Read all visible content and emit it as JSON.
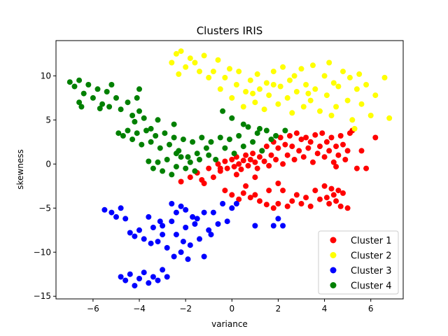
{
  "chart_data": {
    "type": "scatter",
    "title": "Clusters IRIS",
    "xlabel": "variance",
    "ylabel": "skewness",
    "xlim": [
      -7.6,
      7.4
    ],
    "ylim": [
      -15.3,
      14.0
    ],
    "x_ticks": [
      -6,
      -4,
      -2,
      0,
      2,
      4,
      6
    ],
    "y_ticks": [
      -15,
      -10,
      -5,
      0,
      5,
      10
    ],
    "x_tick_labels": [
      "−6",
      "−4",
      "−2",
      "0",
      "2",
      "4",
      "6"
    ],
    "y_tick_labels": [
      "−15",
      "−10",
      "−5",
      "0",
      "5",
      "10"
    ],
    "grid": false,
    "legend_position": "lower-right",
    "series": [
      {
        "name": "Cluster 1",
        "color": "#ff0000",
        "points": [
          [
            -2.2,
            -2.0
          ],
          [
            -1.8,
            -1.5
          ],
          [
            -1.5,
            -1.0
          ],
          [
            -1.2,
            -2.2
          ],
          [
            -1.0,
            -0.5
          ],
          [
            -0.8,
            -1.5
          ],
          [
            -0.6,
            0.0
          ],
          [
            -0.5,
            -0.8
          ],
          [
            -0.3,
            0.3
          ],
          [
            -0.2,
            -0.5
          ],
          [
            0.0,
            0.5
          ],
          [
            0.1,
            -0.3
          ],
          [
            0.2,
            0.8
          ],
          [
            0.3,
            0.0
          ],
          [
            0.4,
            -0.6
          ],
          [
            0.5,
            0.4
          ],
          [
            0.6,
            1.0
          ],
          [
            0.7,
            -0.2
          ],
          [
            0.8,
            0.5
          ],
          [
            0.9,
            1.2
          ],
          [
            1.0,
            0.2
          ],
          [
            1.1,
            -0.5
          ],
          [
            1.2,
            0.8
          ],
          [
            1.3,
            1.5
          ],
          [
            1.4,
            0.3
          ],
          [
            1.5,
            2.0
          ],
          [
            1.6,
            -0.2
          ],
          [
            1.7,
            1.0
          ],
          [
            1.8,
            2.5
          ],
          [
            1.9,
            0.5
          ],
          [
            2.0,
            1.8
          ],
          [
            2.1,
            3.0
          ],
          [
            2.2,
            0.0
          ],
          [
            2.3,
            2.2
          ],
          [
            2.4,
            1.0
          ],
          [
            2.5,
            3.2
          ],
          [
            2.6,
            2.0
          ],
          [
            2.7,
            0.5
          ],
          [
            2.8,
            3.5
          ],
          [
            2.9,
            1.5
          ],
          [
            3.0,
            2.8
          ],
          [
            3.1,
            0.8
          ],
          [
            3.2,
            3.0
          ],
          [
            3.3,
            1.8
          ],
          [
            3.4,
            2.5
          ],
          [
            3.5,
            0.2
          ],
          [
            3.6,
            3.3
          ],
          [
            3.7,
            1.2
          ],
          [
            3.8,
            2.0
          ],
          [
            3.9,
            3.5
          ],
          [
            4.0,
            0.8
          ],
          [
            4.1,
            2.5
          ],
          [
            4.2,
            1.5
          ],
          [
            4.3,
            3.0
          ],
          [
            4.4,
            0.2
          ],
          [
            4.5,
            2.0
          ],
          [
            4.6,
            1.0
          ],
          [
            4.7,
            3.2
          ],
          [
            4.8,
            2.2
          ],
          [
            4.9,
            0.5
          ],
          [
            5.0,
            1.5
          ],
          [
            5.2,
            3.8
          ],
          [
            5.4,
            -0.5
          ],
          [
            5.6,
            1.5
          ],
          [
            5.8,
            -0.5
          ],
          [
            6.2,
            3.0
          ],
          [
            5.1,
            3.5
          ],
          [
            4.5,
            -0.3
          ],
          [
            0.0,
            -3.5
          ],
          [
            0.3,
            -4.0
          ],
          [
            0.5,
            -3.3
          ],
          [
            0.8,
            -3.8
          ],
          [
            1.0,
            -3.5
          ],
          [
            1.2,
            -4.2
          ],
          [
            1.5,
            -4.6
          ],
          [
            1.8,
            -5.0
          ],
          [
            2.0,
            -4.5
          ],
          [
            2.2,
            -3.0
          ],
          [
            2.4,
            -4.8
          ],
          [
            2.6,
            -4.2
          ],
          [
            2.8,
            -3.5
          ],
          [
            3.0,
            -4.5
          ],
          [
            3.2,
            -3.8
          ],
          [
            3.4,
            -4.8
          ],
          [
            3.6,
            -3.0
          ],
          [
            3.8,
            -4.0
          ],
          [
            4.0,
            -2.5
          ],
          [
            4.1,
            -3.8
          ],
          [
            4.2,
            -4.5
          ],
          [
            4.3,
            -2.8
          ],
          [
            4.4,
            -3.5
          ],
          [
            4.5,
            -4.2
          ],
          [
            4.6,
            -3.0
          ],
          [
            4.7,
            -4.8
          ],
          [
            4.8,
            -3.3
          ],
          [
            5.0,
            -5.0
          ],
          [
            2.0,
            -2.2
          ],
          [
            1.0,
            -1.5
          ],
          [
            -0.3,
            -3.0
          ],
          [
            0.6,
            -2.5
          ],
          [
            1.6,
            -3.0
          ],
          [
            0.2,
            -1.2
          ],
          [
            -0.5,
            -0.5
          ],
          [
            -1.3,
            -1.8
          ]
        ]
      },
      {
        "name": "Cluster 2",
        "color": "#ffff00",
        "points": [
          [
            -2.6,
            11.5
          ],
          [
            -2.4,
            12.5
          ],
          [
            -2.3,
            10.2
          ],
          [
            -2.2,
            12.8
          ],
          [
            -2.0,
            11.0
          ],
          [
            -1.8,
            12.0
          ],
          [
            -1.6,
            11.5
          ],
          [
            -1.4,
            10.5
          ],
          [
            -1.2,
            12.3
          ],
          [
            -1.0,
            9.8
          ],
          [
            -0.8,
            10.5
          ],
          [
            -0.6,
            11.8
          ],
          [
            -0.5,
            8.5
          ],
          [
            -0.3,
            9.8
          ],
          [
            -0.1,
            10.8
          ],
          [
            0.0,
            7.5
          ],
          [
            0.2,
            9.0
          ],
          [
            0.3,
            10.5
          ],
          [
            0.5,
            6.5
          ],
          [
            0.6,
            8.2
          ],
          [
            0.8,
            9.5
          ],
          [
            1.0,
            7.0
          ],
          [
            1.1,
            10.2
          ],
          [
            1.2,
            8.5
          ],
          [
            1.4,
            6.2
          ],
          [
            1.5,
            9.2
          ],
          [
            1.6,
            7.8
          ],
          [
            1.8,
            10.5
          ],
          [
            2.0,
            6.8
          ],
          [
            2.1,
            8.8
          ],
          [
            2.2,
            11.0
          ],
          [
            2.4,
            7.5
          ],
          [
            2.5,
            9.5
          ],
          [
            2.6,
            5.8
          ],
          [
            2.8,
            8.2
          ],
          [
            3.0,
            10.8
          ],
          [
            3.1,
            6.5
          ],
          [
            3.2,
            9.0
          ],
          [
            3.4,
            7.2
          ],
          [
            3.5,
            11.2
          ],
          [
            3.6,
            8.5
          ],
          [
            3.8,
            6.0
          ],
          [
            4.0,
            10.0
          ],
          [
            4.1,
            7.8
          ],
          [
            4.2,
            11.5
          ],
          [
            4.4,
            9.2
          ],
          [
            4.5,
            6.5
          ],
          [
            4.6,
            8.8
          ],
          [
            4.8,
            10.5
          ],
          [
            5.0,
            7.2
          ],
          [
            5.1,
            9.8
          ],
          [
            5.2,
            5.0
          ],
          [
            5.4,
            8.5
          ],
          [
            5.5,
            10.2
          ],
          [
            5.6,
            6.8
          ],
          [
            5.8,
            9.0
          ],
          [
            6.0,
            5.5
          ],
          [
            6.2,
            7.8
          ],
          [
            6.6,
            9.8
          ],
          [
            6.8,
            5.2
          ],
          [
            5.3,
            4.0
          ],
          [
            1.8,
            9.0
          ],
          [
            2.7,
            10.0
          ],
          [
            0.9,
            8.0
          ],
          [
            3.3,
            8.0
          ],
          [
            4.3,
            5.5
          ]
        ]
      },
      {
        "name": "Cluster 3",
        "color": "#0000ff",
        "points": [
          [
            -5.5,
            -5.2
          ],
          [
            -5.2,
            -5.5
          ],
          [
            -5.0,
            -6.0
          ],
          [
            -4.8,
            -5.0
          ],
          [
            -4.6,
            -6.2
          ],
          [
            -4.4,
            -7.8
          ],
          [
            -4.2,
            -8.2
          ],
          [
            -4.0,
            -7.5
          ],
          [
            -3.8,
            -8.5
          ],
          [
            -3.6,
            -6.0
          ],
          [
            -3.4,
            -7.2
          ],
          [
            -3.2,
            -8.8
          ],
          [
            -3.0,
            -7.0
          ],
          [
            -2.8,
            -9.5
          ],
          [
            -2.6,
            -6.5
          ],
          [
            -2.4,
            -8.0
          ],
          [
            -2.2,
            -10.0
          ],
          [
            -2.0,
            -7.2
          ],
          [
            -1.8,
            -9.2
          ],
          [
            -1.6,
            -6.8
          ],
          [
            -1.4,
            -8.5
          ],
          [
            -1.2,
            -10.5
          ],
          [
            -1.0,
            -7.5
          ],
          [
            -0.8,
            -5.5
          ],
          [
            -0.6,
            -6.8
          ],
          [
            -0.4,
            -4.5
          ],
          [
            -0.2,
            -6.5
          ],
          [
            0.0,
            -5.0
          ],
          [
            0.2,
            -4.5
          ],
          [
            1.0,
            -7.0
          ],
          [
            1.8,
            -7.0
          ],
          [
            2.0,
            -6.2
          ],
          [
            2.2,
            -7.0
          ],
          [
            -4.8,
            -12.8
          ],
          [
            -4.6,
            -13.2
          ],
          [
            -4.4,
            -12.5
          ],
          [
            -4.2,
            -13.8
          ],
          [
            -4.0,
            -13.0
          ],
          [
            -3.8,
            -12.3
          ],
          [
            -3.6,
            -13.5
          ],
          [
            -3.4,
            -12.8
          ],
          [
            -3.2,
            -13.2
          ],
          [
            -3.0,
            -12.0
          ],
          [
            -2.8,
            -12.8
          ],
          [
            -2.6,
            -4.5
          ],
          [
            -2.4,
            -5.5
          ],
          [
            -2.2,
            -4.8
          ],
          [
            -2.0,
            -5.2
          ],
          [
            -1.5,
            -6.2
          ],
          [
            -1.2,
            -5.5
          ],
          [
            -3.0,
            -8.0
          ],
          [
            -2.5,
            -10.5
          ],
          [
            -1.9,
            -10.8
          ],
          [
            -3.5,
            -9.0
          ],
          [
            -1.7,
            -6.0
          ],
          [
            -0.9,
            -8.0
          ],
          [
            -2.1,
            -8.8
          ],
          [
            -3.1,
            -6.5
          ]
        ]
      },
      {
        "name": "Cluster 4",
        "color": "#008000",
        "points": [
          [
            -7.0,
            9.3
          ],
          [
            -6.8,
            8.8
          ],
          [
            -6.6,
            9.5
          ],
          [
            -6.4,
            8.0
          ],
          [
            -6.2,
            9.0
          ],
          [
            -6.0,
            7.5
          ],
          [
            -5.8,
            8.5
          ],
          [
            -5.6,
            6.8
          ],
          [
            -5.4,
            8.2
          ],
          [
            -5.2,
            9.0
          ],
          [
            -5.0,
            7.5
          ],
          [
            -4.8,
            6.2
          ],
          [
            -4.5,
            7.0
          ],
          [
            -4.3,
            5.5
          ],
          [
            -4.1,
            7.5
          ],
          [
            -4.0,
            8.5
          ],
          [
            -6.6,
            7.0
          ],
          [
            -6.5,
            6.5
          ],
          [
            -5.7,
            6.3
          ],
          [
            -5.3,
            6.5
          ],
          [
            -4.2,
            4.8
          ],
          [
            -4.0,
            6.0
          ],
          [
            -3.8,
            5.2
          ],
          [
            -3.5,
            4.0
          ],
          [
            -3.2,
            5.0
          ],
          [
            -2.5,
            4.5
          ],
          [
            -4.9,
            3.5
          ],
          [
            -4.7,
            3.2
          ],
          [
            -4.5,
            3.8
          ],
          [
            -4.3,
            2.8
          ],
          [
            -4.1,
            3.5
          ],
          [
            -3.9,
            2.2
          ],
          [
            -3.7,
            3.8
          ],
          [
            -3.5,
            2.5
          ],
          [
            -3.3,
            3.2
          ],
          [
            -3.1,
            1.8
          ],
          [
            -2.9,
            3.5
          ],
          [
            -2.7,
            2.2
          ],
          [
            -2.5,
            3.0
          ],
          [
            -2.3,
            1.5
          ],
          [
            -2.1,
            2.8
          ],
          [
            -1.9,
            0.8
          ],
          [
            -1.7,
            2.5
          ],
          [
            -1.5,
            1.2
          ],
          [
            -1.3,
            3.0
          ],
          [
            -1.1,
            1.8
          ],
          [
            -0.9,
            2.5
          ],
          [
            -0.7,
            0.5
          ],
          [
            -0.5,
            3.0
          ],
          [
            -0.3,
            1.8
          ],
          [
            -0.1,
            2.8
          ],
          [
            0.1,
            1.2
          ],
          [
            0.3,
            3.2
          ],
          [
            0.5,
            2.0
          ],
          [
            0.7,
            4.2
          ],
          [
            0.9,
            2.5
          ],
          [
            1.1,
            3.5
          ],
          [
            1.3,
            1.5
          ],
          [
            1.5,
            3.8
          ],
          [
            1.7,
            2.8
          ],
          [
            1.9,
            3.2
          ],
          [
            -3.6,
            0.3
          ],
          [
            -3.4,
            -0.5
          ],
          [
            -3.2,
            0.2
          ],
          [
            -3.0,
            -0.8
          ],
          [
            -2.8,
            0.5
          ],
          [
            -2.6,
            -1.2
          ],
          [
            -2.4,
            -0.3
          ],
          [
            -2.2,
            0.8
          ],
          [
            -2.0,
            -0.5
          ],
          [
            -1.8,
            0.2
          ],
          [
            -1.6,
            -0.8
          ],
          [
            -1.4,
            0.5
          ],
          [
            -0.4,
            6.0
          ],
          [
            0.0,
            5.2
          ],
          [
            0.5,
            4.5
          ],
          [
            1.2,
            4.0
          ],
          [
            2.3,
            3.8
          ],
          [
            -2.4,
            1.2
          ],
          [
            -1.0,
            1.0
          ]
        ]
      }
    ]
  }
}
